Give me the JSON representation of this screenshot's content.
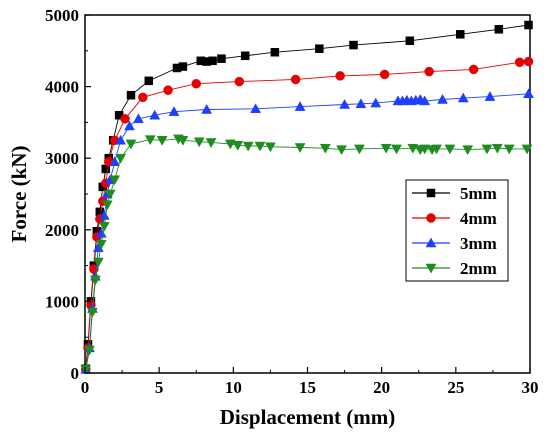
{
  "chart_data": {
    "type": "line",
    "title": "",
    "xlabel": "Displacement (mm)",
    "ylabel": "Force (kN)",
    "xlim": [
      0,
      30
    ],
    "ylim": [
      0,
      5000
    ],
    "xticks": [
      0,
      5,
      10,
      15,
      20,
      25,
      30
    ],
    "yticks": [
      0,
      1000,
      2000,
      3000,
      4000,
      5000
    ],
    "grid": false,
    "legend_position": "right",
    "series": [
      {
        "name": "5mm",
        "color": "#000000",
        "marker": "square",
        "x": [
          0.05,
          0.2,
          0.4,
          0.6,
          0.8,
          1.0,
          1.2,
          1.4,
          1.6,
          1.9,
          2.3,
          3.1,
          4.3,
          6.2,
          6.6,
          7.8,
          8.2,
          8.6,
          9.2,
          10.8,
          12.8,
          15.8,
          18.1,
          21.9,
          25.3,
          27.9,
          29.9
        ],
        "y": [
          60,
          400,
          1000,
          1500,
          1980,
          2250,
          2600,
          2850,
          3000,
          3250,
          3600,
          3880,
          4080,
          4260,
          4280,
          4360,
          4350,
          4360,
          4390,
          4430,
          4480,
          4530,
          4580,
          4640,
          4730,
          4800,
          4860
        ]
      },
      {
        "name": "4mm",
        "color": "#e60000",
        "marker": "circle",
        "x": [
          0.05,
          0.2,
          0.4,
          0.6,
          0.8,
          1.0,
          1.2,
          1.4,
          1.6,
          2.0,
          2.7,
          3.9,
          5.6,
          7.5,
          10.4,
          14.2,
          17.2,
          20.2,
          23.2,
          26.2,
          29.3,
          29.9
        ],
        "y": [
          50,
          350,
          950,
          1450,
          1900,
          2150,
          2400,
          2650,
          2950,
          3250,
          3550,
          3850,
          3950,
          4040,
          4070,
          4100,
          4150,
          4170,
          4210,
          4240,
          4340,
          4350
        ]
      },
      {
        "name": "3mm",
        "color": "#1f3fff",
        "marker": "triangle-up",
        "x": [
          0.05,
          0.3,
          0.5,
          0.7,
          0.9,
          1.1,
          1.3,
          1.5,
          1.7,
          2.0,
          2.4,
          3.0,
          3.6,
          4.7,
          6.0,
          8.2,
          11.5,
          14.5,
          17.5,
          18.6,
          19.6,
          21.1,
          21.4,
          21.7,
          22.0,
          22.3,
          22.6,
          22.9,
          24.1,
          25.5,
          27.3,
          29.9
        ],
        "y": [
          50,
          350,
          900,
          1350,
          1750,
          1950,
          2200,
          2500,
          2700,
          2950,
          3250,
          3450,
          3550,
          3600,
          3650,
          3680,
          3690,
          3720,
          3750,
          3760,
          3770,
          3800,
          3800,
          3810,
          3800,
          3810,
          3820,
          3800,
          3820,
          3840,
          3860,
          3900
        ]
      },
      {
        "name": "2mm",
        "color": "#1e8c1e",
        "marker": "triangle-down",
        "x": [
          0.05,
          0.3,
          0.5,
          0.7,
          0.9,
          1.1,
          1.3,
          1.5,
          1.7,
          2.0,
          2.4,
          3.1,
          4.4,
          5.2,
          6.3,
          6.6,
          7.7,
          8.5,
          9.8,
          10.3,
          11.0,
          11.8,
          12.5,
          14.5,
          16.2,
          17.3,
          18.5,
          20.3,
          21.0,
          22.1,
          22.6,
          22.9,
          23.4,
          23.7,
          24.6,
          25.8,
          27.1,
          27.8,
          28.6,
          29.8
        ],
        "y": [
          50,
          320,
          850,
          1300,
          1550,
          1800,
          2050,
          2350,
          2500,
          2700,
          3000,
          3200,
          3260,
          3250,
          3270,
          3250,
          3230,
          3220,
          3200,
          3180,
          3170,
          3170,
          3160,
          3150,
          3140,
          3120,
          3130,
          3140,
          3130,
          3140,
          3120,
          3130,
          3120,
          3130,
          3130,
          3120,
          3130,
          3140,
          3130,
          3130
        ]
      }
    ]
  }
}
